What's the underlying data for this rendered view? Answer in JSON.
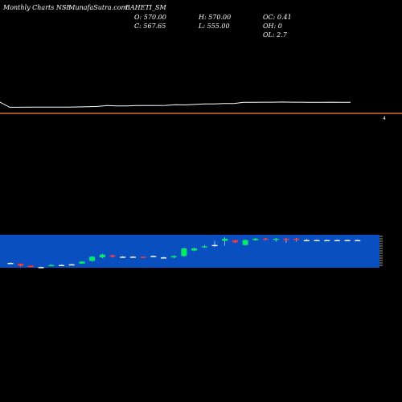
{
  "header": {
    "site_label": "Monthly Charts NSE",
    "source_label": "- MunafaSutra.com",
    "symbol": "BAHETI_SM",
    "open_label": "O: 570.00",
    "close_label": "C: 567.65",
    "high_label": "H: 570.00",
    "low_label": "L: 555.00",
    "oc_label": "OC: 0.41",
    "oh_label": "OH: 0",
    "ol_label": "OL: 2.7"
  },
  "colors": {
    "background": "#000000",
    "price_line": "#ffffff",
    "reference_line": "#ff7f27",
    "volume_panel": "#0a4fbf",
    "up_candle": "#00ee66",
    "down_candle": "#ff3333",
    "neutral_candle": "#ffffff"
  },
  "price_axis": {
    "marker_label": "4"
  },
  "chart_data": [
    {
      "type": "line",
      "x": [
        1,
        2,
        3,
        4,
        5,
        6,
        7,
        8,
        9,
        10,
        11,
        12,
        13,
        14,
        15,
        16,
        17,
        18,
        19,
        20,
        21,
        22,
        23,
        24,
        25,
        26,
        27,
        28,
        29,
        30,
        31,
        32,
        33,
        34,
        35,
        36,
        37
      ],
      "values": [
        6.6,
        3.6,
        3.6,
        3.7,
        3.7,
        3.7,
        3.7,
        3.7,
        3.8,
        3.9,
        4.1,
        4.6,
        4.4,
        4.4,
        4.6,
        4.6,
        4.6,
        4.7,
        5.1,
        5.0,
        5.3,
        5.6,
        5.6,
        5.8,
        5.8,
        6.5,
        6.5,
        6.6,
        6.6,
        6.7,
        6.6,
        6.6,
        6.5,
        6.5,
        6.6,
        6.5,
        6.5
      ],
      "reference_line": 0,
      "ylabel": ""
    },
    {
      "type": "bar",
      "x": [
        1,
        2,
        3,
        4,
        5,
        6,
        7,
        8,
        9,
        10,
        11,
        12,
        13,
        14,
        15,
        16,
        17,
        18,
        19,
        20,
        21,
        22,
        23,
        24,
        25,
        26,
        27,
        28,
        29,
        30,
        31,
        32,
        33,
        34,
        35
      ],
      "open": [
        3.6,
        3.5,
        3.2,
        3.0,
        3.2,
        3.3,
        3.4,
        3.5,
        3.9,
        4.4,
        4.7,
        4.5,
        4.5,
        4.5,
        4.6,
        4.4,
        4.4,
        4.6,
        5.4,
        5.9,
        6.2,
        6.8,
        6.9,
        6.2,
        6.9,
        7.1,
        7.0,
        7.1,
        7.1,
        6.9,
        6.9,
        6.9,
        6.9,
        6.9,
        6.9
      ],
      "close": [
        3.6,
        3.2,
        3.0,
        3.0,
        3.3,
        3.3,
        3.4,
        3.8,
        4.5,
        4.8,
        4.5,
        4.5,
        4.5,
        4.4,
        4.6,
        4.4,
        4.6,
        5.7,
        5.7,
        6.0,
        6.2,
        7.1,
        6.6,
        6.9,
        7.1,
        7.0,
        7.1,
        6.9,
        6.9,
        6.9,
        6.9,
        6.9,
        6.9,
        6.9,
        6.9
      ],
      "high": [
        3.7,
        3.5,
        3.2,
        3.1,
        3.4,
        3.4,
        3.5,
        3.8,
        4.6,
        4.9,
        4.8,
        4.6,
        4.6,
        4.5,
        4.7,
        4.5,
        4.7,
        5.8,
        5.8,
        6.2,
        6.8,
        7.3,
        6.9,
        7.0,
        7.2,
        7.2,
        7.2,
        7.2,
        7.2,
        7.1,
        7.0,
        7.0,
        7.0,
        7.0,
        7.0
      ],
      "low": [
        3.6,
        3.1,
        3.0,
        2.9,
        3.2,
        3.2,
        3.3,
        3.5,
        3.8,
        4.3,
        4.4,
        4.4,
        4.4,
        4.3,
        4.5,
        4.3,
        4.3,
        4.5,
        5.3,
        5.8,
        5.9,
        6.1,
        6.5,
        6.1,
        6.8,
        6.9,
        6.7,
        6.5,
        6.7,
        6.8,
        6.8,
        6.8,
        6.8,
        6.8,
        6.8
      ]
    }
  ]
}
